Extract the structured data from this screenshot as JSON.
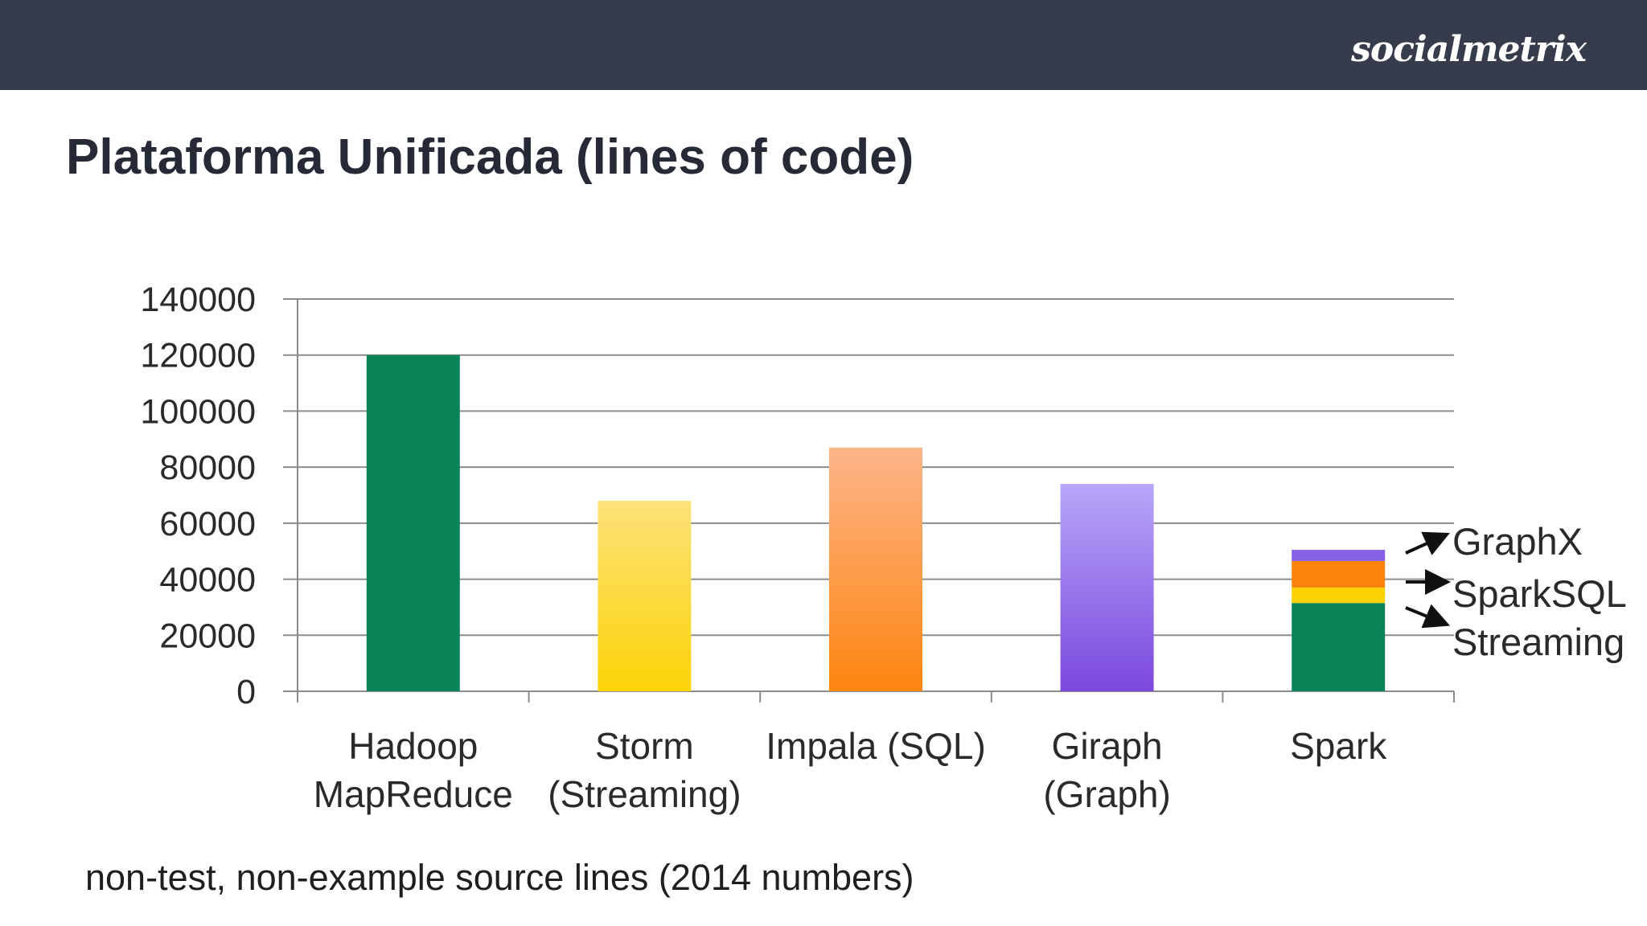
{
  "header": {
    "brand": "socialmetrix",
    "background_color": "#373c4c"
  },
  "slide": {
    "title": "Plataforma Unificada (lines of code)",
    "footnote": "non-test, non-example source lines (2014 numbers)"
  },
  "chart_data": {
    "type": "bar",
    "title": "",
    "xlabel": "",
    "ylabel": "",
    "ylim": [
      0,
      140000
    ],
    "yticks": [
      "0",
      "20000",
      "40000",
      "60000",
      "80000",
      "100000",
      "120000",
      "140000"
    ],
    "grid": true,
    "categories": [
      [
        "Hadoop",
        "MapReduce"
      ],
      [
        "Storm",
        "(Streaming)"
      ],
      [
        "Impala (SQL)"
      ],
      [
        "Giraph",
        "(Graph)"
      ],
      [
        "Spark"
      ]
    ],
    "bars": [
      {
        "category": "Hadoop MapReduce",
        "value": 120000,
        "colors": [
          "#0a8457",
          "#0a8457"
        ]
      },
      {
        "category": "Storm (Streaming)",
        "value": 68000,
        "colors": [
          "#fde27a",
          "#fcd306"
        ]
      },
      {
        "category": "Impala (SQL)",
        "value": 87000,
        "colors": [
          "#fdb58a",
          "#fd850f"
        ]
      },
      {
        "category": "Giraph (Graph)",
        "value": 74000,
        "colors": [
          "#b7a6f8",
          "#7a48dd"
        ]
      },
      {
        "category": "Spark",
        "stacked": true,
        "segments": [
          {
            "name": "Spark",
            "value": 31500,
            "color": "#0a8457"
          },
          {
            "name": "Streaming",
            "value": 5500,
            "color": "#fcd306"
          },
          {
            "name": "SparkSQL",
            "value": 9500,
            "color": "#fd850f"
          },
          {
            "name": "GraphX",
            "value": 4000,
            "color": "#8660e6"
          }
        ]
      }
    ],
    "annotations": [
      "GraphX",
      "SparkSQL",
      "Streaming"
    ]
  }
}
